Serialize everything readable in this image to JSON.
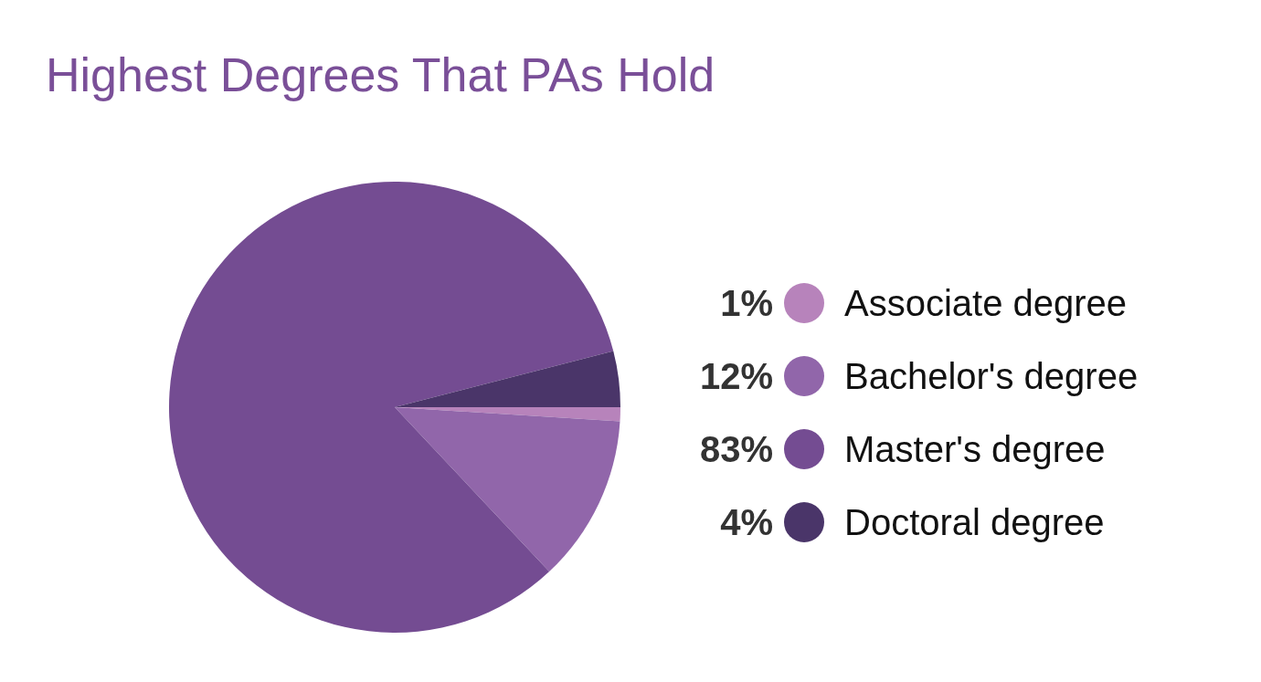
{
  "chart_data": {
    "type": "pie",
    "title": "Highest Degrees That PAs Hold",
    "categories": [
      "Associate degree",
      "Bachelor's degree",
      "Master's degree",
      "Doctoral degree"
    ],
    "values": [
      1,
      12,
      83,
      4
    ],
    "colors": [
      "#b783bb",
      "#9166aa",
      "#744c92",
      "#4a3569"
    ],
    "value_labels": [
      "1%",
      "12%",
      "83%",
      "4%"
    ],
    "legend": "right"
  }
}
